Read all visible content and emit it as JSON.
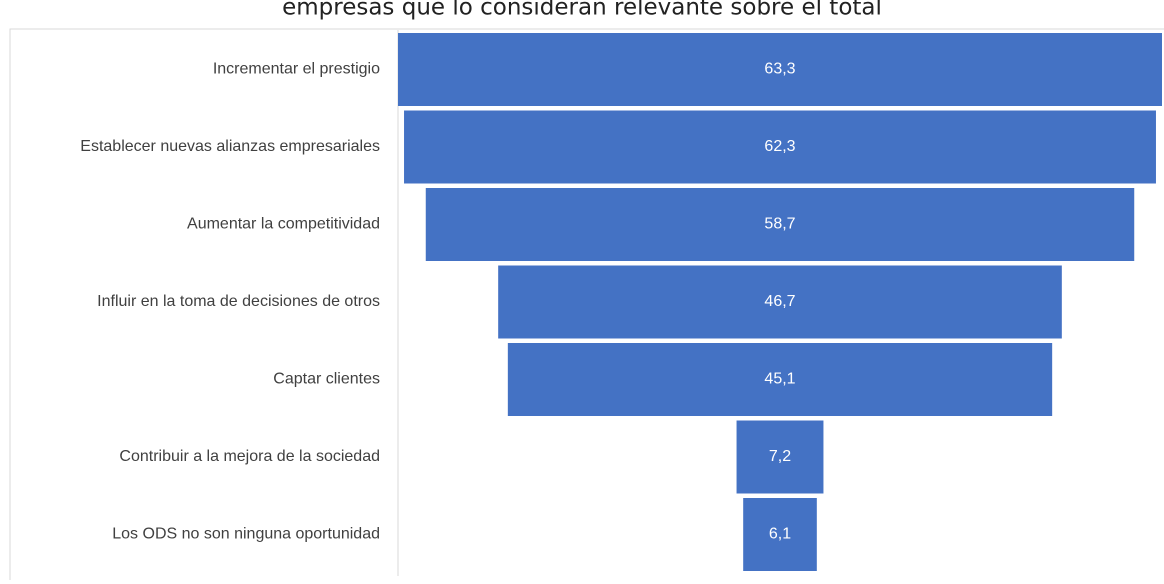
{
  "chart_data": {
    "type": "funnel",
    "title": "empresas que lo consideran relevante sobre el total",
    "categories": [
      "Incrementar el prestigio",
      "Establecer nuevas alianzas empresariales",
      "Aumentar la competitividad",
      "Influir en la toma de decisiones de otros",
      "Captar clientes",
      "Contribuir a la mejora de la sociedad",
      "Los ODS no son ninguna oportunidad"
    ],
    "values": [
      63.3,
      62.3,
      58.7,
      46.7,
      45.1,
      7.2,
      6.1
    ],
    "value_labels": [
      "63,3",
      "62,3",
      "58,7",
      "46,7",
      "45,1",
      "7,2",
      "6,1"
    ],
    "color": "#4472c4"
  }
}
